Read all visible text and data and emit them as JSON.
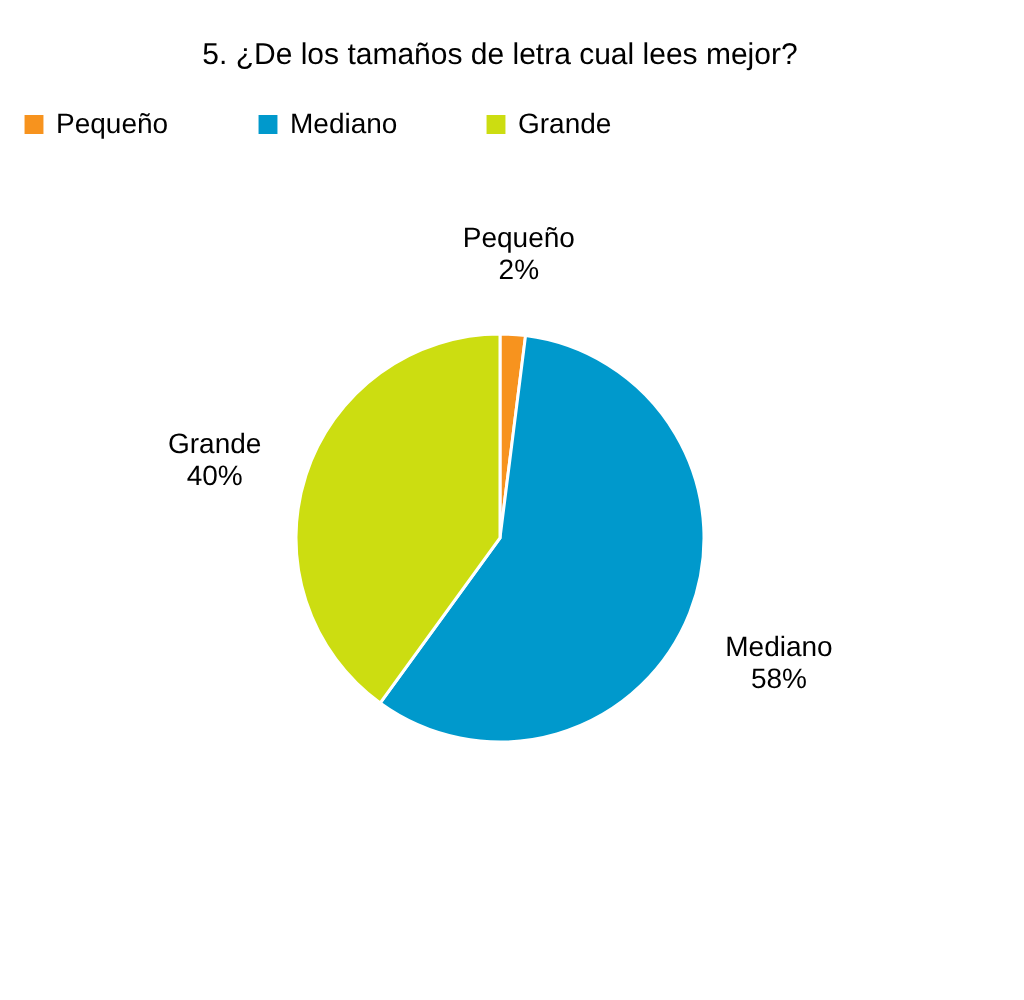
{
  "chart_data": {
    "type": "pie",
    "title": "5. ¿De los tamaños de letra cual lees mejor?",
    "categories": [
      "Pequeño",
      "Mediano",
      "Grande"
    ],
    "values": [
      2,
      58,
      40
    ],
    "colors": [
      "#f7931e",
      "#0099cc",
      "#ccdd11"
    ],
    "value_labels": [
      "2%",
      "58%",
      "40%"
    ],
    "legend": "top"
  }
}
